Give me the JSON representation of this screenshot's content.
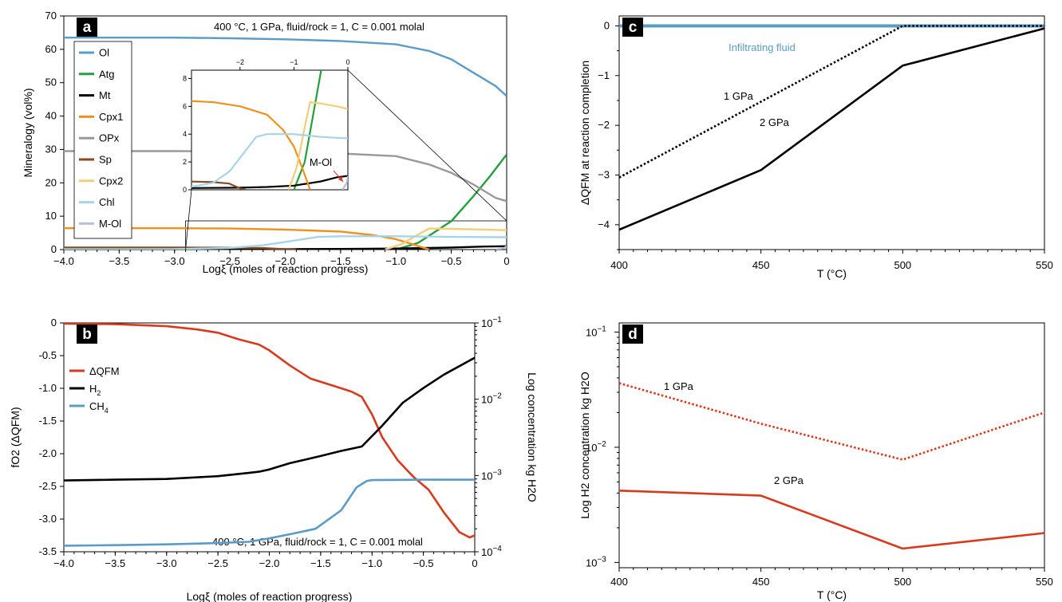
{
  "panels": [
    {
      "letter": "a",
      "chart_data": {
        "type": "line",
        "xlabel": "Logξ (moles of reaction progress)",
        "ylabel": "Mineralogy (vol%)",
        "xlim": [
          -4.0,
          0
        ],
        "ylim": [
          0,
          70
        ],
        "xticks": [
          -4.0,
          -3.5,
          -3.0,
          -2.5,
          -2.0,
          -1.5,
          -1.0,
          -0.5,
          0
        ],
        "xtick_labels": [
          "−4.0",
          "−3.5",
          "−3.0",
          "−2.5",
          "−2.0",
          "−1.5",
          "−1.0",
          "−0.5",
          "0"
        ],
        "yticks": [
          0,
          10,
          20,
          30,
          40,
          50,
          60,
          70
        ],
        "ytick_labels": [
          "0",
          "10",
          "20",
          "30",
          "40",
          "50",
          "60",
          "70"
        ],
        "annotation": "400 °C, 1 GPa, fluid/rock = 1, C = 0.001 molal",
        "legend_position": "left",
        "series": [
          {
            "name": "Ol",
            "color": "#5b9bc8",
            "points": [
              [
                -4.0,
                63.5
              ],
              [
                -3.0,
                63.5
              ],
              [
                -2.5,
                63.3
              ],
              [
                -2.0,
                63.0
              ],
              [
                -1.5,
                62.5
              ],
              [
                -1.0,
                61.5
              ],
              [
                -0.7,
                59.5
              ],
              [
                -0.5,
                57
              ],
              [
                -0.3,
                53
              ],
              [
                -0.1,
                49
              ],
              [
                0,
                46
              ]
            ]
          },
          {
            "name": "Atg",
            "color": "#22a03a",
            "points": [
              [
                -1.0,
                0
              ],
              [
                -0.8,
                2
              ],
              [
                -0.5,
                8.5
              ],
              [
                -0.3,
                16
              ],
              [
                -0.15,
                22
              ],
              [
                0,
                28.5
              ]
            ]
          },
          {
            "name": "Mt",
            "color": "#000000",
            "points": [
              [
                -4.0,
                0.1
              ],
              [
                -2.0,
                0.15
              ],
              [
                -1.5,
                0.2
              ],
              [
                -1.0,
                0.3
              ],
              [
                -0.5,
                0.6
              ],
              [
                -0.2,
                0.9
              ],
              [
                0,
                1.0
              ]
            ]
          },
          {
            "name": "Cpx1",
            "color": "#f0901e",
            "points": [
              [
                -4.0,
                6.4
              ],
              [
                -3.0,
                6.4
              ],
              [
                -2.5,
                6.3
              ],
              [
                -2.0,
                6.0
              ],
              [
                -1.5,
                5.4
              ],
              [
                -1.2,
                4.3
              ],
              [
                -1.0,
                3.1
              ],
              [
                -0.85,
                1.6
              ],
              [
                -0.7,
                0
              ]
            ]
          },
          {
            "name": "OPx",
            "color": "#999999",
            "points": [
              [
                -4.0,
                29.5
              ],
              [
                -3.0,
                29.5
              ],
              [
                -2.5,
                29.4
              ],
              [
                -2.0,
                29.2
              ],
              [
                -1.5,
                28.8
              ],
              [
                -1.0,
                28.0
              ],
              [
                -0.7,
                25.5
              ],
              [
                -0.5,
                23.0
              ],
              [
                -0.3,
                19.5
              ],
              [
                -0.1,
                15.5
              ],
              [
                0,
                14.5
              ]
            ]
          },
          {
            "name": "Sp",
            "color": "#8b4a1f",
            "points": [
              [
                -4.0,
                0.6
              ],
              [
                -3.0,
                0.6
              ],
              [
                -2.5,
                0.55
              ],
              [
                -2.2,
                0.45
              ],
              [
                -2.0,
                0.1
              ],
              [
                -1.9,
                0
              ]
            ]
          },
          {
            "name": "Cpx2",
            "color": "#f5cd78",
            "points": [
              [
                -1.1,
                0
              ],
              [
                -0.95,
                1.6
              ],
              [
                -0.8,
                4.5
              ],
              [
                -0.7,
                6.3
              ],
              [
                -0.5,
                6.2
              ],
              [
                -0.2,
                6.0
              ],
              [
                0,
                5.8
              ]
            ]
          },
          {
            "name": "Chl",
            "color": "#a6d5eb",
            "points": [
              [
                -4.0,
                0.1
              ],
              [
                -3.0,
                0.15
              ],
              [
                -2.5,
                0.5
              ],
              [
                -2.2,
                1.3
              ],
              [
                -1.9,
                2.8
              ],
              [
                -1.7,
                3.8
              ],
              [
                -1.5,
                4.0
              ],
              [
                -1.0,
                4.0
              ],
              [
                -0.5,
                3.8
              ],
              [
                0,
                3.7
              ]
            ]
          },
          {
            "name": "M-Ol",
            "color": "#b8bedf",
            "points": [
              [
                -0.1,
                0
              ],
              [
                -0.02,
                0.5
              ],
              [
                0,
                1.0
              ]
            ]
          }
        ],
        "inset": {
          "xticks": [
            -2,
            -1,
            0
          ],
          "xtick_labels": [
            "−2",
            "−1",
            "0"
          ],
          "yticks": [
            0,
            2,
            4,
            6,
            8
          ],
          "ytick_labels": [
            "0",
            "2",
            "4",
            "6",
            "8"
          ],
          "xlim": [
            -2.9,
            0
          ],
          "ylim": [
            0,
            8.6
          ],
          "label": "M-Ol"
        }
      }
    },
    {
      "letter": "b",
      "chart_data": {
        "type": "line",
        "xlabel": "Logξ (moles of reaction progress)",
        "ylabel": "fO2 (ΔQFM)",
        "ylabel_right": "Log concentration kg H2O",
        "xlim": [
          -4.0,
          0
        ],
        "ylim": [
          -3.5,
          0
        ],
        "ylim_right_log": [
          0.0001,
          0.1
        ],
        "xticks": [
          -4.0,
          -3.5,
          -3.0,
          -2.5,
          -2.0,
          -1.5,
          -1.0,
          -0.5,
          0
        ],
        "xtick_labels": [
          "−4.0",
          "−3.5",
          "−3.0",
          "−2.5",
          "−2.0",
          "−1.5",
          "−1.0",
          "−0.5",
          "0"
        ],
        "yticks": [
          0,
          -0.5,
          -1.0,
          -1.5,
          -2.0,
          -2.5,
          -3.0,
          -3.5
        ],
        "ytick_labels": [
          "0",
          "-0.5",
          "-1.0",
          "-1.5",
          "-2.0",
          "-2.5",
          "-3.0",
          "-3.5"
        ],
        "yticks_right_labels": [
          "10−1",
          "10−2",
          "10−3",
          "10−4"
        ],
        "annotation": "400 °C, 1 GPa, fluid/rock = 1, C = 0.001 molal",
        "legend_position": "upper-left",
        "series": [
          {
            "name": "ΔQFM",
            "axis": "left",
            "color": "#d93a1e",
            "points": [
              [
                -4.0,
                -0.01
              ],
              [
                -3.5,
                -0.02
              ],
              [
                -3.0,
                -0.05
              ],
              [
                -2.7,
                -0.1
              ],
              [
                -2.5,
                -0.15
              ],
              [
                -2.3,
                -0.25
              ],
              [
                -2.1,
                -0.33
              ],
              [
                -2.0,
                -0.42
              ],
              [
                -1.8,
                -0.65
              ],
              [
                -1.6,
                -0.85
              ],
              [
                -1.4,
                -0.95
              ],
              [
                -1.2,
                -1.05
              ],
              [
                -1.1,
                -1.13
              ],
              [
                -1.0,
                -1.4
              ],
              [
                -0.9,
                -1.75
              ],
              [
                -0.75,
                -2.1
              ],
              [
                -0.6,
                -2.35
              ],
              [
                -0.45,
                -2.55
              ],
              [
                -0.3,
                -2.9
              ],
              [
                -0.15,
                -3.2
              ],
              [
                -0.05,
                -3.28
              ],
              [
                0,
                -3.25
              ]
            ]
          },
          {
            "name": "H2",
            "axis": "right",
            "color": "#000000",
            "points": [
              [
                -4.0,
                0.00086
              ],
              [
                -3.5,
                0.00088
              ],
              [
                -3.0,
                0.0009
              ],
              [
                -2.5,
                0.00098
              ],
              [
                -2.2,
                0.00108
              ],
              [
                -2.1,
                0.00112
              ],
              [
                -2.0,
                0.0012
              ],
              [
                -1.8,
                0.00145
              ],
              [
                -1.5,
                0.0018
              ],
              [
                -1.3,
                0.0021
              ],
              [
                -1.1,
                0.0024
              ],
              [
                -0.9,
                0.0045
              ],
              [
                -0.7,
                0.009
              ],
              [
                -0.5,
                0.014
              ],
              [
                -0.3,
                0.021
              ],
              [
                0,
                0.035
              ]
            ]
          },
          {
            "name": "CH4",
            "axis": "right",
            "color": "#5b9bc8",
            "points": [
              [
                -4.0,
                0.00012
              ],
              [
                -3.5,
                0.000122
              ],
              [
                -3.0,
                0.000125
              ],
              [
                -2.5,
                0.00013
              ],
              [
                -2.2,
                0.000135
              ],
              [
                -2.0,
                0.00015
              ],
              [
                -1.8,
                0.00017
              ],
              [
                -1.55,
                0.0002
              ],
              [
                -1.3,
                0.00035
              ],
              [
                -1.15,
                0.0007
              ],
              [
                -1.05,
                0.00085
              ],
              [
                -1.0,
                0.00087
              ],
              [
                -0.5,
                0.00088
              ],
              [
                0,
                0.00088
              ]
            ]
          }
        ]
      }
    },
    {
      "letter": "c",
      "chart_data": {
        "type": "line",
        "xlabel": "T (°C)",
        "ylabel": "ΔQFM at reaction completion",
        "xlim": [
          400,
          550
        ],
        "ylim": [
          -4.5,
          0.2
        ],
        "xticks": [
          400,
          450,
          500,
          550
        ],
        "xtick_labels": [
          "400",
          "450",
          "500",
          "550"
        ],
        "yticks": [
          0,
          -1,
          -2,
          -3,
          -4
        ],
        "ytick_labels": [
          "0",
          "−1",
          "−2",
          "−3",
          "−4"
        ],
        "series": [
          {
            "name": "Infiltrating fluid",
            "color": "#5b9bc8",
            "style": "solid",
            "points": [
              [
                400,
                0
              ],
              [
                550,
                0
              ]
            ]
          },
          {
            "name": "1 GPa",
            "color": "#000000",
            "style": "dotted",
            "points": [
              [
                400,
                -3.05
              ],
              [
                500,
                0
              ],
              [
                550,
                0
              ]
            ]
          },
          {
            "name": "2 GPa",
            "color": "#000000",
            "style": "solid",
            "points": [
              [
                400,
                -4.1
              ],
              [
                450,
                -2.9
              ],
              [
                500,
                -0.8
              ],
              [
                550,
                -0.05
              ]
            ]
          }
        ]
      }
    },
    {
      "letter": "d",
      "chart_data": {
        "type": "line",
        "xlabel": "T (°C)",
        "ylabel": "Log H2 concentration kg H2O",
        "xlim": [
          400,
          550
        ],
        "ylim_log": [
          0.0009,
          0.12
        ],
        "xticks": [
          400,
          450,
          500,
          550
        ],
        "xtick_labels": [
          "400",
          "450",
          "500",
          "550"
        ],
        "yticks_labels": [
          "10−1",
          "10−2",
          "10−3"
        ],
        "series": [
          {
            "name": "1 GPa",
            "color": "#d93a1e",
            "style": "dotted",
            "points": [
              [
                400,
                0.036
              ],
              [
                450,
                0.016
              ],
              [
                500,
                0.0078
              ],
              [
                550,
                0.02
              ]
            ]
          },
          {
            "name": "2 GPa",
            "color": "#d93a1e",
            "style": "solid",
            "points": [
              [
                400,
                0.0042
              ],
              [
                450,
                0.0038
              ],
              [
                500,
                0.00132
              ],
              [
                550,
                0.0018
              ]
            ]
          }
        ]
      }
    }
  ]
}
